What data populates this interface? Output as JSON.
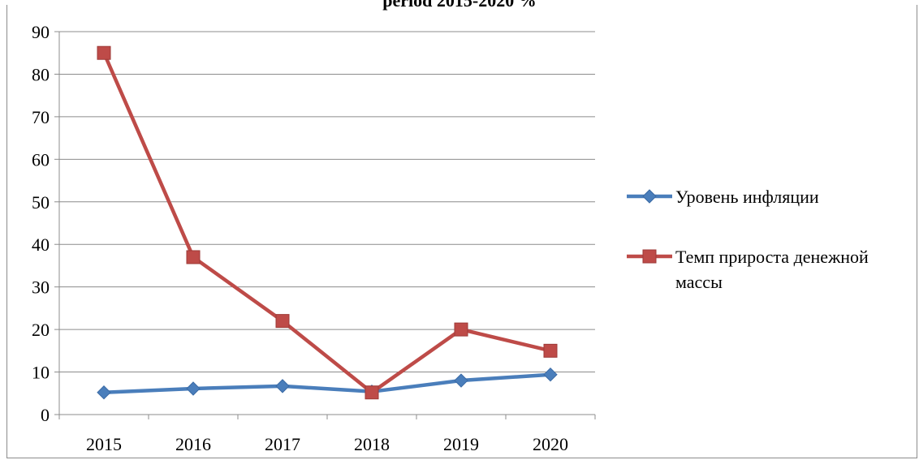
{
  "chart_data": {
    "type": "line",
    "title": "period 2015-2020 %",
    "categories": [
      "2015",
      "2016",
      "2017",
      "2018",
      "2019",
      "2020"
    ],
    "ylim": [
      0,
      90
    ],
    "yticks": [
      0,
      10,
      20,
      30,
      40,
      50,
      60,
      70,
      80,
      90
    ],
    "grid": true,
    "legend": "right",
    "series": [
      {
        "name": "Уровень инфляции",
        "values": [
          5.2,
          6.1,
          6.7,
          5.4,
          8.0,
          9.4
        ],
        "color": "#4a7ebb",
        "marker": "diamond"
      },
      {
        "name": "Темп прироста денежной массы",
        "name_lines": [
          "Темп прироста денежной",
          "массы"
        ],
        "values": [
          85,
          37,
          22,
          5.2,
          20,
          15
        ],
        "color": "#be4b48",
        "marker": "square"
      }
    ]
  }
}
